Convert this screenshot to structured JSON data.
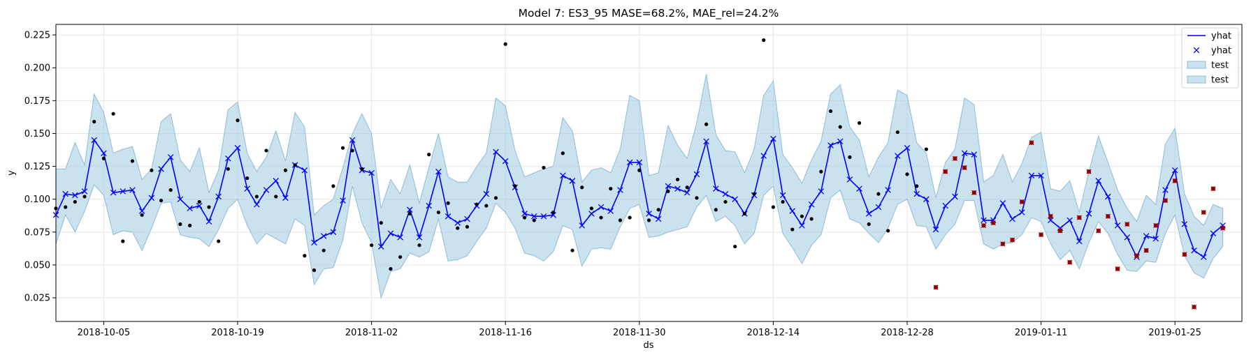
{
  "chart_data": {
    "type": "line",
    "title": "Model 7: ES3_95 MASE=68.2%, MAE_rel=24.2%",
    "xlabel": "ds",
    "ylabel": "y",
    "x_range": [
      "2018-09-30",
      "2019-02-01"
    ],
    "ylim": [
      0.007,
      0.233
    ],
    "y_ticks": [
      "0.025",
      "0.050",
      "0.075",
      "0.100",
      "0.125",
      "0.150",
      "0.175",
      "0.200",
      "0.225"
    ],
    "x_ticks": [
      "2018-10-05",
      "2018-10-19",
      "2018-11-02",
      "2018-11-16",
      "2018-11-30",
      "2018-12-14",
      "2018-12-28",
      "2019-01-11",
      "2019-01-25"
    ],
    "grid": true,
    "legend_position": "top-right",
    "legend": [
      "yhat",
      "yhat",
      "test",
      "test"
    ],
    "colors": {
      "line": "#0000ff",
      "band_fill": "#a6cde2",
      "band_edge": "#8fbcd8",
      "train_point": "#000000",
      "test_point": "#cc0000",
      "grid": "#e5e5e5"
    },
    "forecast_start": "2018-09-30",
    "yhat": [
      0.088,
      0.104,
      0.103,
      0.106,
      0.145,
      0.135,
      0.105,
      0.106,
      0.107,
      0.091,
      0.101,
      0.123,
      0.132,
      0.1,
      0.093,
      0.095,
      0.083,
      0.102,
      0.131,
      0.139,
      0.108,
      0.096,
      0.107,
      0.114,
      0.101,
      0.126,
      0.122,
      0.067,
      0.072,
      0.075,
      0.099,
      0.145,
      0.122,
      0.12,
      0.064,
      0.074,
      0.071,
      0.092,
      0.071,
      0.095,
      0.121,
      0.087,
      0.082,
      0.085,
      0.095,
      0.104,
      0.136,
      0.129,
      0.109,
      0.089,
      0.087,
      0.087,
      0.088,
      0.118,
      0.114,
      0.08,
      0.089,
      0.094,
      0.091,
      0.107,
      0.128,
      0.128,
      0.089,
      0.085,
      0.11,
      0.108,
      0.105,
      0.119,
      0.144,
      0.108,
      0.104,
      0.1,
      0.089,
      0.103,
      0.133,
      0.146,
      0.103,
      0.091,
      0.08,
      0.096,
      0.106,
      0.141,
      0.144,
      0.115,
      0.108,
      0.089,
      0.094,
      0.107,
      0.133,
      0.139,
      0.104,
      0.1,
      0.077,
      0.095,
      0.102,
      0.135,
      0.134,
      0.084,
      0.084,
      0.097,
      0.085,
      0.09,
      0.118,
      0.118,
      0.084,
      0.078,
      0.084,
      0.068,
      0.089,
      0.114,
      0.102,
      0.08,
      0.071,
      0.056,
      0.072,
      0.07,
      0.107,
      0.122,
      0.081,
      0.061,
      0.056,
      0.074,
      0.08
    ],
    "upper": [
      0.123,
      0.123,
      0.143,
      0.126,
      0.18,
      0.166,
      0.135,
      0.138,
      0.14,
      0.115,
      0.123,
      0.159,
      0.165,
      0.13,
      0.121,
      0.139,
      0.105,
      0.122,
      0.168,
      0.174,
      0.135,
      0.121,
      0.132,
      0.152,
      0.129,
      0.166,
      0.155,
      0.088,
      0.095,
      0.1,
      0.124,
      0.15,
      0.165,
      0.15,
      0.093,
      0.115,
      0.104,
      0.126,
      0.097,
      0.124,
      0.15,
      0.117,
      0.113,
      0.113,
      0.125,
      0.135,
      0.177,
      0.171,
      0.137,
      0.117,
      0.12,
      0.123,
      0.125,
      0.162,
      0.152,
      0.113,
      0.122,
      0.124,
      0.12,
      0.138,
      0.179,
      0.175,
      0.118,
      0.12,
      0.156,
      0.141,
      0.131,
      0.158,
      0.195,
      0.149,
      0.137,
      0.136,
      0.12,
      0.138,
      0.179,
      0.19,
      0.134,
      0.124,
      0.112,
      0.13,
      0.144,
      0.18,
      0.187,
      0.155,
      0.145,
      0.117,
      0.132,
      0.143,
      0.183,
      0.179,
      0.143,
      0.135,
      0.101,
      0.128,
      0.138,
      0.177,
      0.172,
      0.113,
      0.118,
      0.134,
      0.113,
      0.127,
      0.147,
      0.151,
      0.108,
      0.106,
      0.114,
      0.09,
      0.121,
      0.148,
      0.128,
      0.107,
      0.093,
      0.083,
      0.103,
      0.096,
      0.142,
      0.154,
      0.104,
      0.087,
      0.08,
      0.096,
      0.093
    ],
    "lower": [
      0.066,
      0.088,
      0.075,
      0.091,
      0.111,
      0.103,
      0.073,
      0.076,
      0.075,
      0.061,
      0.078,
      0.097,
      0.098,
      0.073,
      0.071,
      0.07,
      0.064,
      0.077,
      0.093,
      0.1,
      0.08,
      0.066,
      0.074,
      0.07,
      0.066,
      0.085,
      0.08,
      0.035,
      0.047,
      0.048,
      0.069,
      0.11,
      0.082,
      0.067,
      0.025,
      0.045,
      0.047,
      0.059,
      0.056,
      0.06,
      0.085,
      0.053,
      0.054,
      0.057,
      0.068,
      0.078,
      0.097,
      0.09,
      0.078,
      0.059,
      0.057,
      0.053,
      0.06,
      0.08,
      0.077,
      0.049,
      0.062,
      0.063,
      0.062,
      0.079,
      0.093,
      0.096,
      0.071,
      0.072,
      0.075,
      0.077,
      0.079,
      0.094,
      0.103,
      0.083,
      0.087,
      0.08,
      0.066,
      0.074,
      0.103,
      0.11,
      0.074,
      0.063,
      0.051,
      0.065,
      0.073,
      0.101,
      0.107,
      0.085,
      0.082,
      0.074,
      0.067,
      0.078,
      0.096,
      0.1,
      0.08,
      0.079,
      0.062,
      0.073,
      0.081,
      0.099,
      0.099,
      0.066,
      0.062,
      0.066,
      0.067,
      0.073,
      0.086,
      0.083,
      0.066,
      0.054,
      0.061,
      0.047,
      0.067,
      0.083,
      0.074,
      0.058,
      0.046,
      0.045,
      0.053,
      0.052,
      0.074,
      0.088,
      0.057,
      0.044,
      0.04,
      0.055,
      0.064
    ],
    "train_actual": [
      [
        0,
        0.093
      ],
      [
        1,
        0.094
      ],
      [
        2,
        0.098
      ],
      [
        3,
        0.102
      ],
      [
        4,
        0.159
      ],
      [
        5,
        0.131
      ],
      [
        6,
        0.165
      ],
      [
        7,
        0.068
      ],
      [
        8,
        0.129
      ],
      [
        9,
        0.088
      ],
      [
        10,
        0.122
      ],
      [
        11,
        0.099
      ],
      [
        12,
        0.107
      ],
      [
        13,
        0.081
      ],
      [
        14,
        0.08
      ],
      [
        15,
        0.098
      ],
      [
        16,
        0.094
      ],
      [
        17,
        0.068
      ],
      [
        18,
        0.123
      ],
      [
        19,
        0.16
      ],
      [
        20,
        0.116
      ],
      [
        21,
        0.102
      ],
      [
        22,
        0.137
      ],
      [
        23,
        0.102
      ],
      [
        24,
        0.122
      ],
      [
        25,
        0.126
      ],
      [
        26,
        0.057
      ],
      [
        27,
        0.046
      ],
      [
        28,
        0.061
      ],
      [
        29,
        0.11
      ],
      [
        30,
        0.139
      ],
      [
        31,
        0.137
      ],
      [
        32,
        0.123
      ],
      [
        33,
        0.065
      ],
      [
        34,
        0.082
      ],
      [
        35,
        0.047
      ],
      [
        36,
        0.056
      ],
      [
        37,
        0.089
      ],
      [
        38,
        0.065
      ],
      [
        39,
        0.134
      ],
      [
        40,
        0.09
      ],
      [
        41,
        0.097
      ],
      [
        42,
        0.078
      ],
      [
        43,
        0.079
      ],
      [
        44,
        0.096
      ],
      [
        45,
        0.095
      ],
      [
        46,
        0.101
      ],
      [
        47,
        0.218
      ],
      [
        48,
        0.11
      ],
      [
        49,
        0.086
      ],
      [
        50,
        0.084
      ],
      [
        51,
        0.124
      ],
      [
        52,
        0.09
      ],
      [
        53,
        0.135
      ],
      [
        54,
        0.061
      ],
      [
        55,
        0.109
      ],
      [
        56,
        0.093
      ],
      [
        57,
        0.086
      ],
      [
        58,
        0.108
      ],
      [
        59,
        0.084
      ],
      [
        60,
        0.086
      ],
      [
        61,
        0.122
      ],
      [
        62,
        0.084
      ],
      [
        63,
        0.092
      ],
      [
        64,
        0.106
      ],
      [
        65,
        0.115
      ],
      [
        66,
        0.109
      ],
      [
        67,
        0.101
      ],
      [
        68,
        0.157
      ],
      [
        69,
        0.092
      ],
      [
        70,
        0.098
      ],
      [
        71,
        0.064
      ],
      [
        72,
        0.089
      ],
      [
        73,
        0.104
      ],
      [
        74,
        0.221
      ],
      [
        75,
        0.094
      ],
      [
        76,
        0.098
      ],
      [
        77,
        0.077
      ],
      [
        78,
        0.087
      ],
      [
        79,
        0.085
      ],
      [
        80,
        0.121
      ],
      [
        81,
        0.167
      ],
      [
        82,
        0.155
      ],
      [
        83,
        0.132
      ],
      [
        84,
        0.158
      ],
      [
        85,
        0.081
      ],
      [
        86,
        0.104
      ],
      [
        87,
        0.076
      ],
      [
        88,
        0.151
      ],
      [
        89,
        0.119
      ],
      [
        90,
        0.11
      ],
      [
        91,
        0.138
      ]
    ],
    "test_actual": [
      [
        92,
        0.033
      ],
      [
        93,
        0.121
      ],
      [
        94,
        0.131
      ],
      [
        95,
        0.124
      ],
      [
        96,
        0.105
      ],
      [
        97,
        0.08
      ],
      [
        98,
        0.082
      ],
      [
        99,
        0.066
      ],
      [
        100,
        0.069
      ],
      [
        101,
        0.098
      ],
      [
        102,
        0.143
      ],
      [
        103,
        0.073
      ],
      [
        104,
        0.087
      ],
      [
        105,
        0.076
      ],
      [
        106,
        0.052
      ],
      [
        107,
        0.086
      ],
      [
        108,
        0.121
      ],
      [
        109,
        0.076
      ],
      [
        110,
        0.087
      ],
      [
        111,
        0.047
      ],
      [
        112,
        0.081
      ],
      [
        113,
        0.057
      ],
      [
        114,
        0.061
      ],
      [
        115,
        0.08
      ],
      [
        116,
        0.099
      ],
      [
        117,
        0.114
      ],
      [
        118,
        0.058
      ],
      [
        119,
        0.018
      ],
      [
        120,
        0.09
      ],
      [
        121,
        0.108
      ],
      [
        122,
        0.078
      ]
    ]
  }
}
